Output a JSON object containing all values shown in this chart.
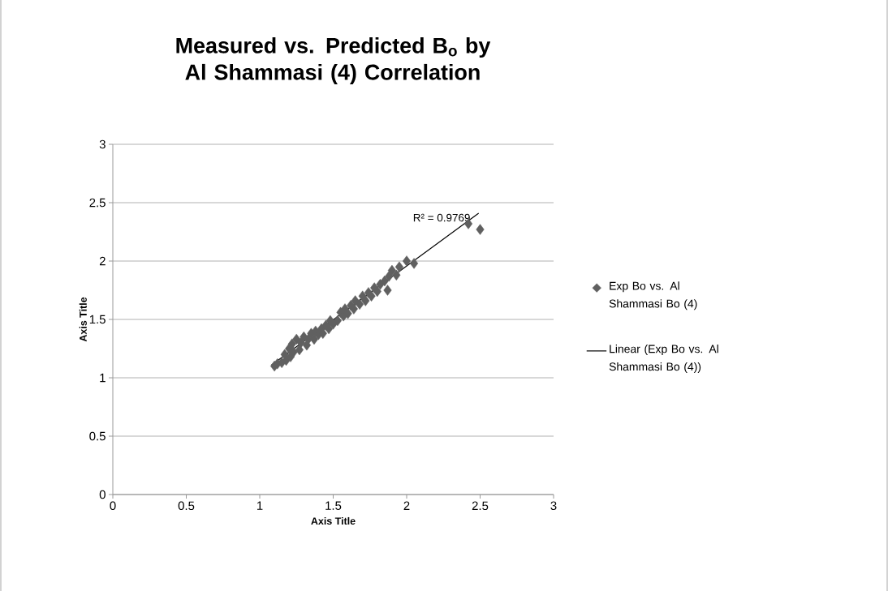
{
  "chart_data": {
    "type": "scatter",
    "title": "Measured vs. Predicted B$_{o}$ by Al Shammasi (4) Correlation",
    "xlabel": "Axis Title",
    "ylabel": "Axis Title",
    "annotations": [
      "R² = 0.9769"
    ],
    "series": [
      {
        "name": "Exp Bo vs. Al Shammasi Bo (4)",
        "color": "#606060",
        "marker": "diamond",
        "x": [
          1.1,
          1.12,
          1.15,
          1.17,
          1.18,
          1.2,
          1.21,
          1.22,
          1.23,
          1.25,
          1.27,
          1.28,
          1.3,
          1.32,
          1.33,
          1.35,
          1.37,
          1.38,
          1.4,
          1.42,
          1.43,
          1.45,
          1.47,
          1.48,
          1.5,
          1.53,
          1.55,
          1.57,
          1.58,
          1.6,
          1.62,
          1.64,
          1.65,
          1.68,
          1.7,
          1.72,
          1.74,
          1.76,
          1.78,
          1.8,
          1.82,
          1.85,
          1.87,
          1.88,
          1.9,
          1.93,
          1.95,
          2.0,
          2.05,
          2.42,
          2.5
        ],
        "values": [
          1.1,
          1.12,
          1.13,
          1.2,
          1.15,
          1.25,
          1.18,
          1.29,
          1.22,
          1.33,
          1.24,
          1.3,
          1.35,
          1.28,
          1.33,
          1.38,
          1.33,
          1.4,
          1.37,
          1.42,
          1.38,
          1.45,
          1.42,
          1.49,
          1.46,
          1.49,
          1.56,
          1.53,
          1.59,
          1.55,
          1.62,
          1.59,
          1.66,
          1.63,
          1.7,
          1.66,
          1.73,
          1.7,
          1.77,
          1.74,
          1.8,
          1.83,
          1.75,
          1.87,
          1.92,
          1.88,
          1.95,
          2.0,
          1.98,
          2.32,
          2.27
        ]
      },
      {
        "name": "Linear (Exp Bo vs. Al Shammasi Bo (4))",
        "type": "line",
        "color": "#000000",
        "marker": "none",
        "line_style": "solid",
        "x": [
          1.08,
          2.49
        ],
        "values": [
          1.11,
          2.41
        ]
      }
    ],
    "xlim": [
      0,
      3
    ],
    "ylim": [
      0,
      3
    ],
    "xticks": [
      0,
      0.5,
      1,
      1.5,
      2,
      2.5,
      3
    ],
    "yticks": [
      0,
      0.5,
      1,
      1.5,
      2,
      2.5,
      3
    ],
    "grid": "y",
    "legend": "right"
  }
}
